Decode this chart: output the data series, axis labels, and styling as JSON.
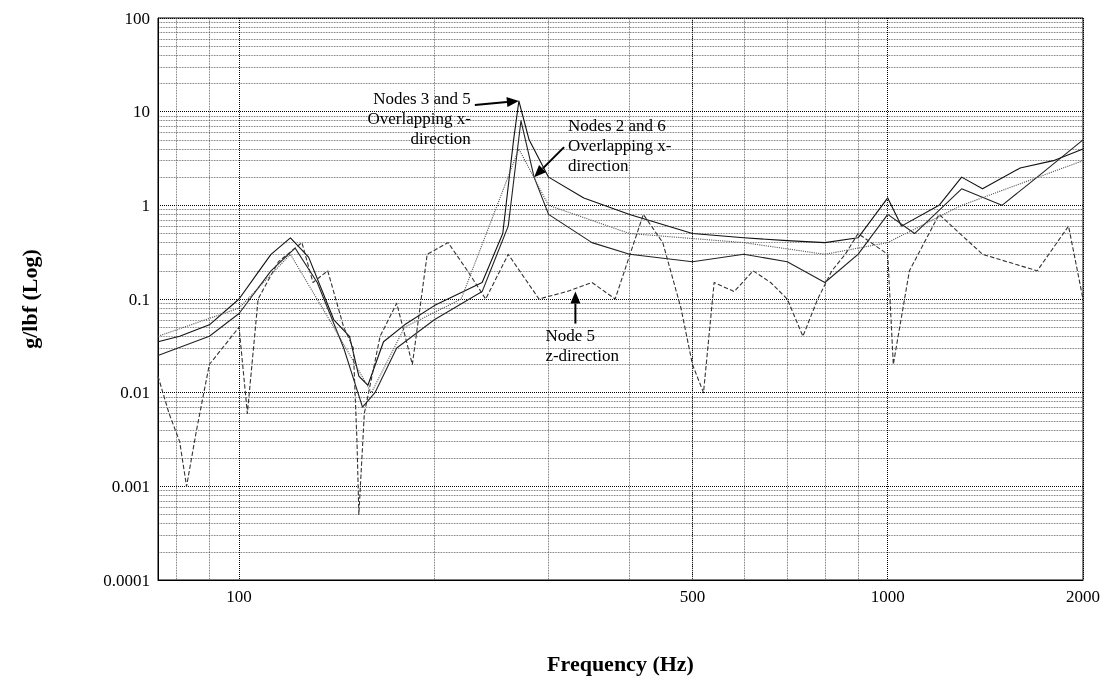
{
  "chart_data": {
    "type": "line",
    "xlabel": "Frequency (Hz)",
    "ylabel": "g/lbf (Log)",
    "log": "xy",
    "grid": true,
    "marker": "none",
    "xlim": [
      75,
      2000
    ],
    "xticks": [
      100,
      500,
      1000,
      2000
    ],
    "ylim": [
      0.0001,
      100
    ],
    "yticks": [
      0.0001,
      0.001,
      0.01,
      0.1,
      1,
      10,
      100
    ],
    "annotations": [
      {
        "text": "Nodes 3 and 5\nOverlapping x-\ndirection",
        "x": 270,
        "y": 13
      },
      {
        "text": "Nodes 2 and 6\nOverlapping x-\ndirection",
        "x": 285,
        "y": 2
      },
      {
        "text": "Node 5\nz-direction",
        "x": 330,
        "y": 0.12
      }
    ],
    "series": [
      {
        "color": "#111111",
        "line_style": "solid",
        "x": [
          75,
          81,
          90,
          100,
          112,
          120,
          128,
          140,
          148,
          153,
          158,
          167,
          180,
          200,
          237,
          255,
          265,
          270,
          280,
          300,
          340,
          400,
          500,
          600,
          700,
          800,
          900,
          1000,
          1050,
          1200,
          1300,
          1400,
          1600,
          1800,
          2000
        ],
        "values": [
          0.035,
          0.04,
          0.053,
          0.1,
          0.3,
          0.45,
          0.28,
          0.06,
          0.04,
          0.015,
          0.012,
          0.035,
          0.053,
          0.085,
          0.15,
          0.5,
          5,
          13,
          5,
          2,
          1.2,
          0.8,
          0.5,
          0.45,
          0.42,
          0.4,
          0.45,
          1.2,
          0.6,
          1,
          2,
          1.5,
          2.5,
          3,
          4
        ]
      },
      {
        "color": "#222222",
        "line_style": "solid",
        "x": [
          75,
          90,
          100,
          112,
          122,
          132,
          145,
          155,
          162,
          175,
          200,
          237,
          260,
          272,
          285,
          300,
          350,
          400,
          500,
          600,
          700,
          800,
          900,
          1000,
          1100,
          1300,
          1500,
          1700,
          2000
        ],
        "values": [
          0.025,
          0.04,
          0.07,
          0.2,
          0.35,
          0.15,
          0.03,
          0.007,
          0.01,
          0.03,
          0.06,
          0.12,
          0.6,
          8,
          2,
          0.8,
          0.4,
          0.3,
          0.25,
          0.3,
          0.25,
          0.15,
          0.3,
          0.8,
          0.5,
          1.5,
          1,
          2,
          5
        ]
      },
      {
        "color": "#333333",
        "line_style": "dashed",
        "x": [
          75,
          78,
          81,
          83,
          86,
          90,
          100,
          103,
          107,
          115,
          125,
          130,
          137,
          145,
          150,
          152,
          153,
          156,
          165,
          175,
          185,
          195,
          210,
          225,
          240,
          260,
          290,
          320,
          350,
          380,
          420,
          450,
          480,
          500,
          520,
          540,
          580,
          620,
          660,
          700,
          740,
          780,
          820,
          860,
          900,
          1000,
          1020,
          1080,
          1200,
          1400,
          1700,
          1900,
          2000
        ],
        "values": [
          0.015,
          0.006,
          0.003,
          0.001,
          0.004,
          0.02,
          0.05,
          0.006,
          0.1,
          0.25,
          0.4,
          0.15,
          0.2,
          0.05,
          0.03,
          0.003,
          0.0005,
          0.006,
          0.04,
          0.09,
          0.02,
          0.3,
          0.4,
          0.2,
          0.1,
          0.3,
          0.1,
          0.12,
          0.15,
          0.1,
          0.8,
          0.4,
          0.08,
          0.02,
          0.01,
          0.15,
          0.12,
          0.2,
          0.15,
          0.1,
          0.04,
          0.1,
          0.2,
          0.3,
          0.5,
          0.3,
          0.02,
          0.2,
          0.8,
          0.3,
          0.2,
          0.6,
          0.1
        ]
      },
      {
        "color": "#555555",
        "line_style": "dotted",
        "x": [
          75,
          100,
          120,
          140,
          160,
          180,
          220,
          270,
          300,
          400,
          600,
          800,
          1000,
          1300,
          2000
        ],
        "values": [
          0.04,
          0.08,
          0.3,
          0.05,
          0.01,
          0.05,
          0.1,
          4,
          1,
          0.5,
          0.4,
          0.3,
          0.4,
          1,
          3
        ]
      }
    ]
  }
}
